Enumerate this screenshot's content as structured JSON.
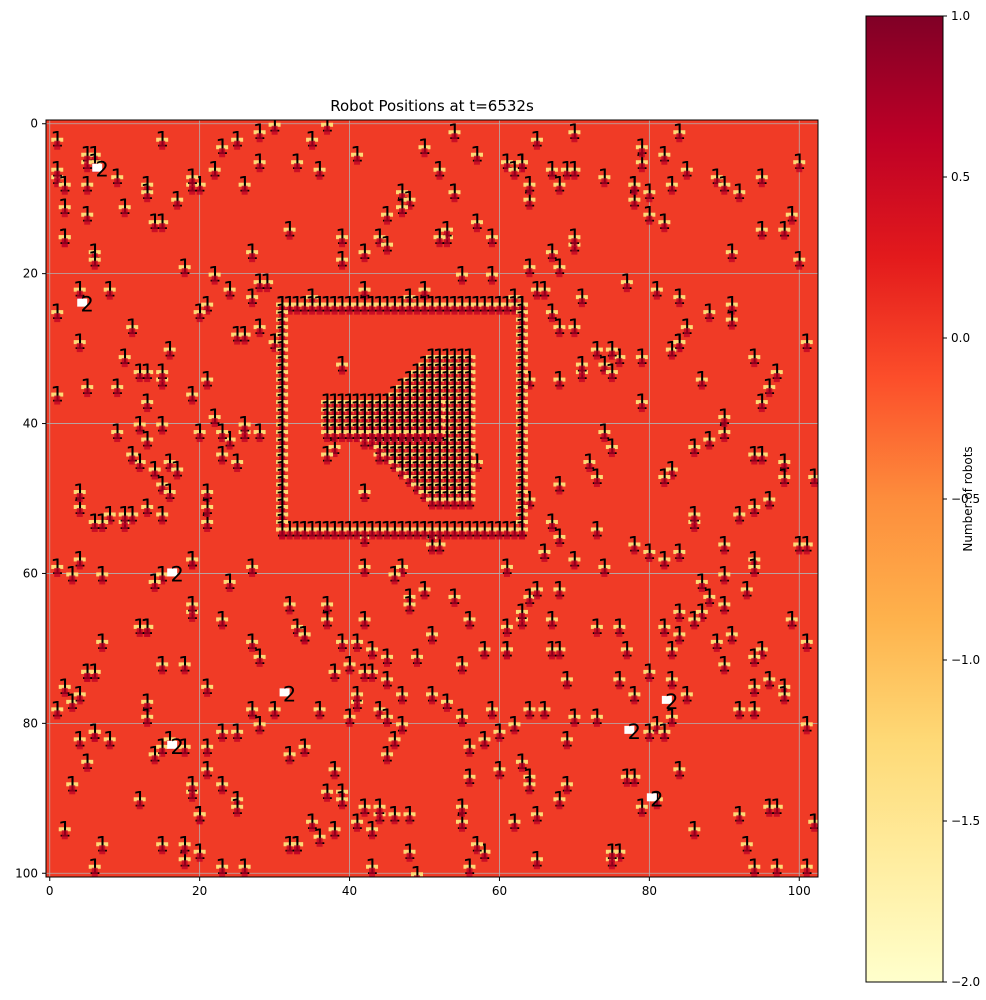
{
  "chart_data": {
    "type": "heatmap",
    "title": "Robot Positions at t=6532s",
    "xlabel": "",
    "ylabel": "",
    "xlim": [
      -0.5,
      102.5
    ],
    "ylim": [
      100.5,
      -0.5
    ],
    "xticks": [
      "0",
      "20",
      "40",
      "60",
      "80",
      "100"
    ],
    "yticks": [
      "0",
      "20",
      "40",
      "60",
      "80",
      "100"
    ],
    "grid": true,
    "cells": {
      "background_value": 0,
      "note_text": ""
    },
    "colorbar": {
      "label": "Number of robots",
      "range": [
        -2.0,
        1.0
      ],
      "ticks": [
        "1.0",
        "0.5",
        "0.0",
        "−0.5",
        "−1.0",
        "−1.5",
        "−2.0"
      ],
      "colormap": "YlOrRd",
      "colors": [
        "#ffffcc",
        "#ffeda0",
        "#fed976",
        "#feb24c",
        "#fd8d3c",
        "#fc4e2a",
        "#e31a1c",
        "#bd0026",
        "#800026"
      ]
    },
    "annotations": {
      "boundary_walls": {
        "x_range": [
          31,
          63
        ],
        "y_range": [
          24,
          54
        ],
        "label": "1"
      },
      "cluster": {
        "x_range": [
          37,
          58
        ],
        "y_range": [
          31,
          50
        ],
        "label": "1"
      },
      "two_robot_cells": [
        {
          "x": 7,
          "y": 6,
          "label": "2"
        },
        {
          "x": 5,
          "y": 24,
          "label": "2"
        },
        {
          "x": 17,
          "y": 60,
          "label": "2"
        },
        {
          "x": 32,
          "y": 76,
          "label": "2"
        },
        {
          "x": 83,
          "y": 77,
          "label": "2"
        },
        {
          "x": 78,
          "y": 81,
          "label": "2"
        },
        {
          "x": 17,
          "y": 83,
          "label": "2"
        },
        {
          "x": 81,
          "y": 90,
          "label": "2"
        }
      ],
      "single_robot_label": "1",
      "empty_cell_label": "0",
      "scattered_robot_count": 520
    }
  }
}
